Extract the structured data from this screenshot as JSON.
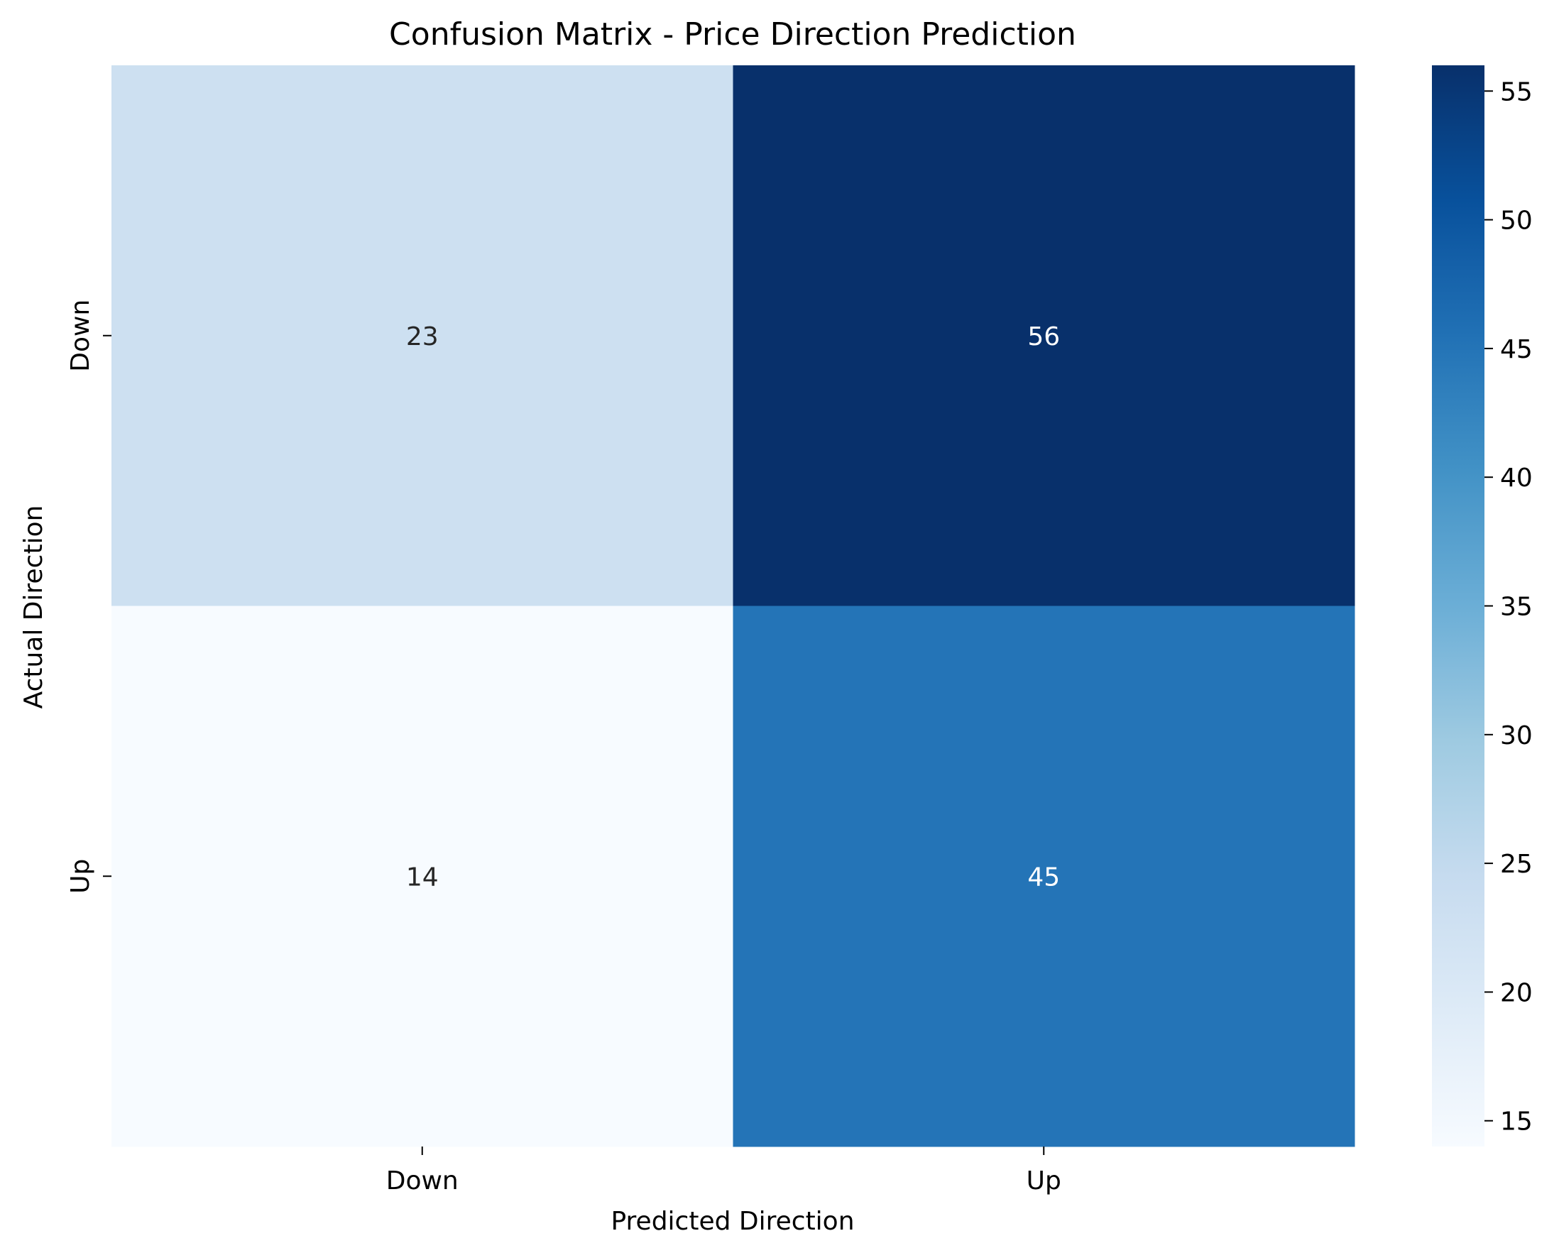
{
  "chart_data": {
    "type": "heatmap",
    "title": "Confusion Matrix - Price Direction Prediction",
    "xlabel": "Predicted Direction",
    "ylabel": "Actual Direction",
    "x_categories": [
      "Down",
      "Up"
    ],
    "y_categories": [
      "Down",
      "Up"
    ],
    "values": [
      [
        23,
        56
      ],
      [
        14,
        45
      ]
    ],
    "colormap": "Blues",
    "color_range": [
      14,
      56
    ],
    "colorbar_ticks": [
      15,
      20,
      25,
      30,
      35,
      40,
      45,
      50,
      55
    ],
    "colorbar_tick_labels": [
      "15",
      "20",
      "25",
      "30",
      "35",
      "40",
      "45",
      "50",
      "55"
    ],
    "legend": "colorbar-right",
    "grid": false
  },
  "colors": {
    "cell_text_dark": "#262626",
    "cell_text_light": "#ffffff",
    "axis_text": "#000000"
  }
}
